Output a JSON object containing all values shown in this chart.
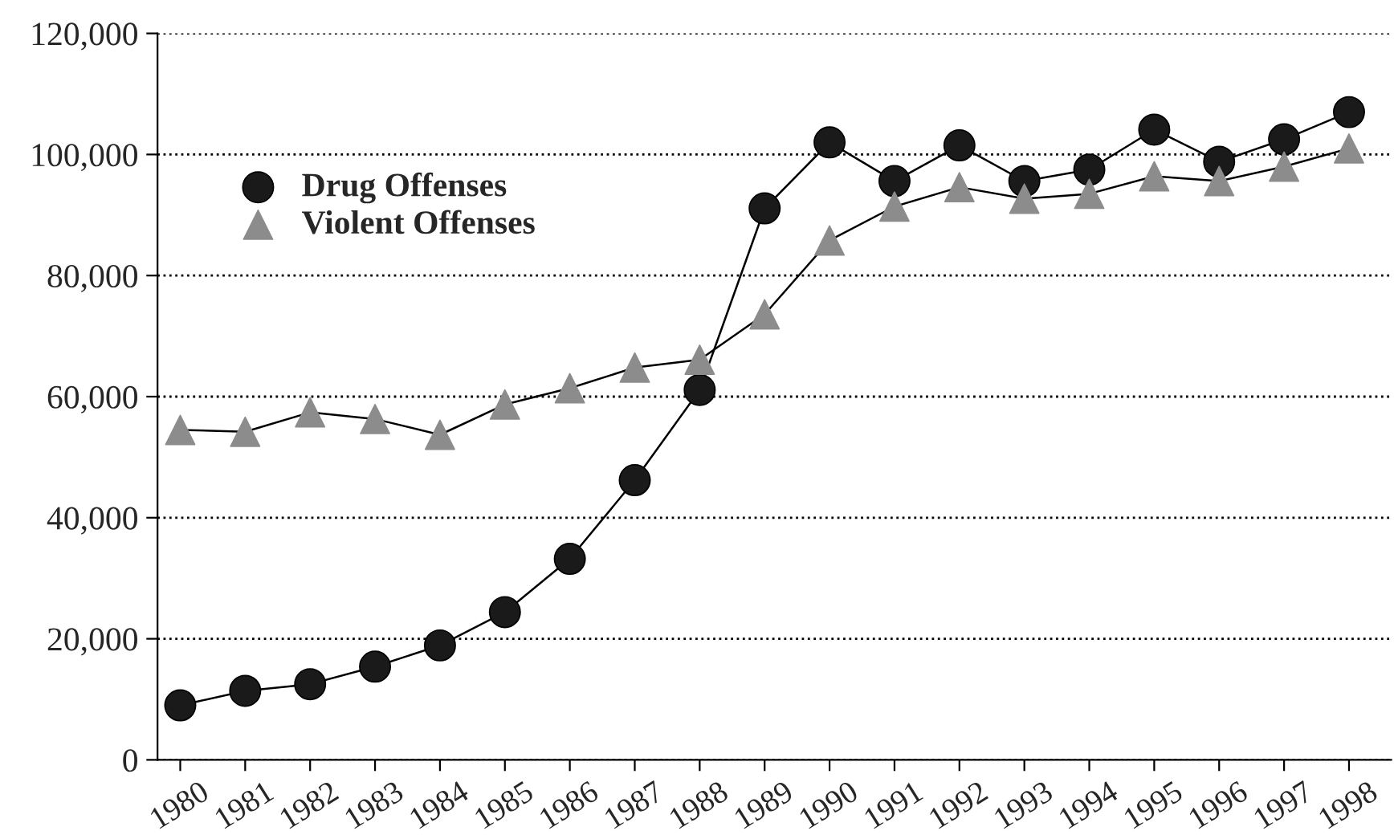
{
  "chart_data": {
    "type": "line",
    "categories": [
      "1980",
      "1981",
      "1982",
      "1983",
      "1984",
      "1985",
      "1986",
      "1987",
      "1988",
      "1989",
      "1990",
      "1991",
      "1992",
      "1993",
      "1994",
      "1995",
      "1996",
      "1997",
      "1998"
    ],
    "series": [
      {
        "name": "Drug Offenses",
        "color": "#1a1a1a",
        "marker": "circle",
        "values": [
          9000,
          11400,
          12500,
          15400,
          18900,
          24400,
          33200,
          46200,
          61100,
          91100,
          102000,
          95600,
          101500,
          95600,
          97500,
          104100,
          98800,
          102500,
          107000
        ]
      },
      {
        "name": "Violent Offenses",
        "color": "#8c8c8c",
        "marker": "triangle",
        "values": [
          54500,
          54200,
          57400,
          56300,
          53700,
          58700,
          61400,
          64800,
          66100,
          73600,
          85800,
          91400,
          94600,
          92700,
          93500,
          96400,
          95600,
          98000,
          101000
        ]
      }
    ],
    "ylim": [
      0,
      120000
    ],
    "yticks": [
      {
        "value": 0,
        "label": "0"
      },
      {
        "value": 20000,
        "label": "20,000"
      },
      {
        "value": 40000,
        "label": "40,000"
      },
      {
        "value": 60000,
        "label": "60,000"
      },
      {
        "value": 80000,
        "label": "80,000"
      },
      {
        "value": 100000,
        "label": "100,000"
      },
      {
        "value": 120000,
        "label": "120,000"
      }
    ],
    "grid": "y",
    "legend": "top left",
    "line_style": "solid"
  }
}
